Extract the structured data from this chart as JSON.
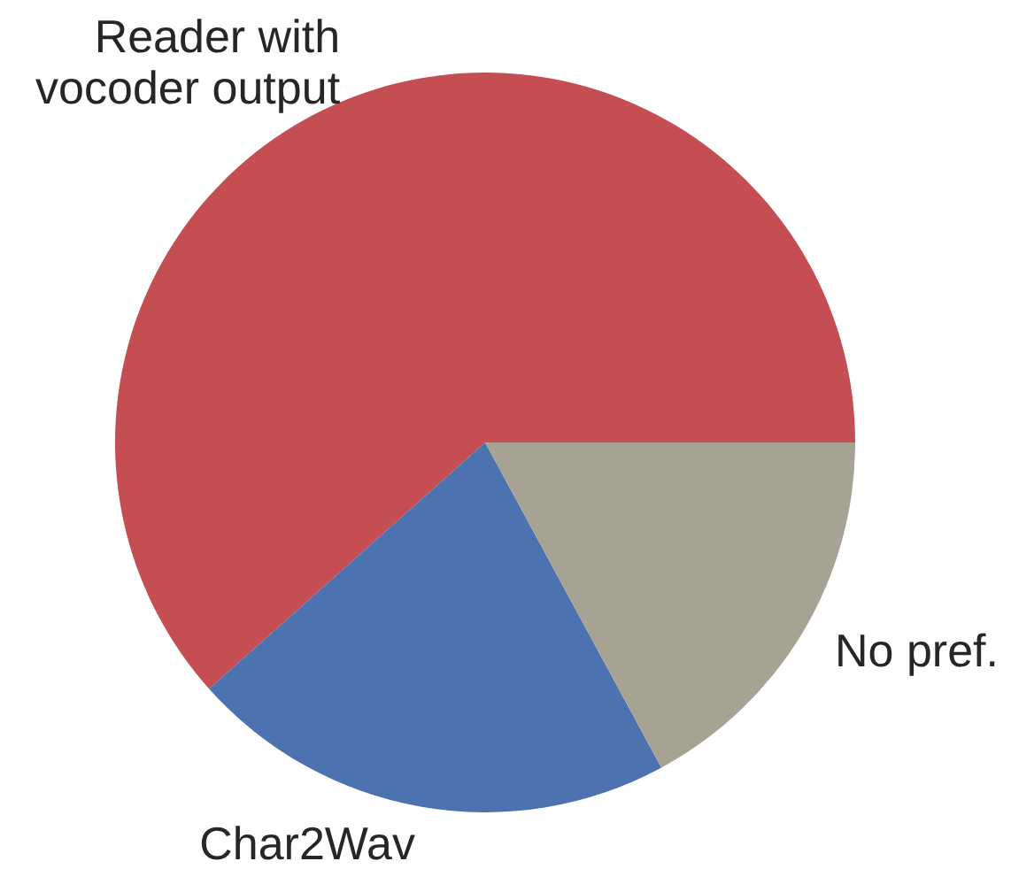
{
  "chart_data": {
    "type": "pie",
    "categories": [
      "Reader with\nvocoder output",
      "Char2Wav",
      "No pref."
    ],
    "values": [
      61.6,
      21.3,
      17.1
    ],
    "colors": [
      "#c44e52",
      "#4c72b0",
      "#a6a394"
    ]
  }
}
